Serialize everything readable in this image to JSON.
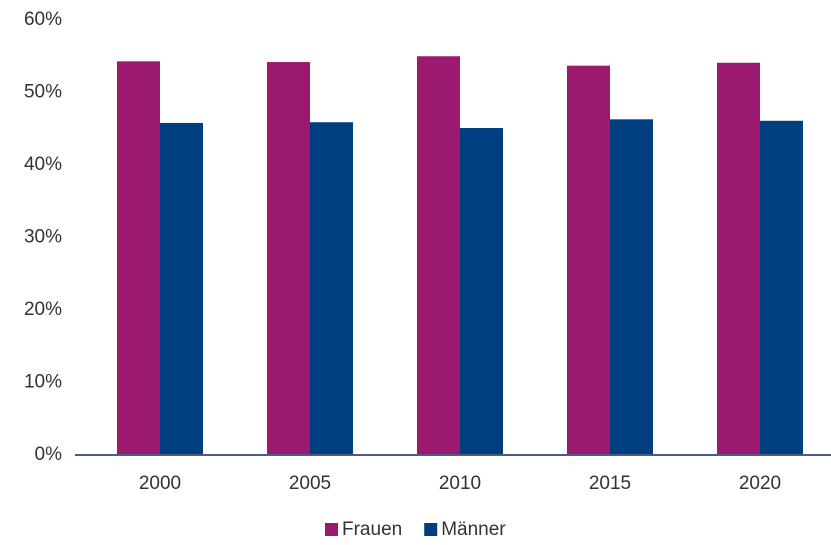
{
  "chart_data": {
    "type": "bar",
    "categories": [
      "2000",
      "2005",
      "2010",
      "2015",
      "2020"
    ],
    "series": [
      {
        "name": "Frauen",
        "color": "#9b1a70",
        "values": [
          54.3,
          54.2,
          55.0,
          53.7,
          54.1
        ]
      },
      {
        "name": "Männer",
        "color": "#003f7f",
        "values": [
          45.8,
          45.9,
          45.1,
          46.3,
          46.1
        ]
      }
    ],
    "ylim": [
      0,
      60
    ],
    "yticks": [
      {
        "value": 0,
        "label": "0%"
      },
      {
        "value": 10,
        "label": "10%"
      },
      {
        "value": 20,
        "label": "20%"
      },
      {
        "value": 30,
        "label": "30%"
      },
      {
        "value": 40,
        "label": "40%"
      },
      {
        "value": 50,
        "label": "50%"
      },
      {
        "value": 60,
        "label": "60%"
      }
    ],
    "grid": false,
    "legend": "bottom"
  }
}
